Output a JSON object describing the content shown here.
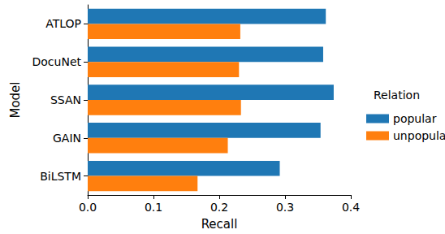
{
  "chart_data": {
    "type": "bar",
    "orientation": "horizontal",
    "x_label": "Recall",
    "y_label": "Model",
    "legend_title": "Relation",
    "legend": "right",
    "categories": [
      "ATLOP",
      "DocuNet",
      "SSAN",
      "GAIN",
      "BiLSTM"
    ],
    "series": [
      {
        "name": "popular",
        "color": "#1f77b4",
        "values": [
          0.362,
          0.358,
          0.374,
          0.354,
          0.292
        ]
      },
      {
        "name": "unpopular",
        "color": "#ff7f0e",
        "values": [
          0.232,
          0.23,
          0.233,
          0.213,
          0.167
        ]
      }
    ],
    "xlim": [
      0,
      0.4
    ],
    "xticks": [
      {
        "value": 0,
        "label": "0.0"
      },
      0.1,
      0.2,
      0.3,
      0.4
    ],
    "grid": false
  }
}
